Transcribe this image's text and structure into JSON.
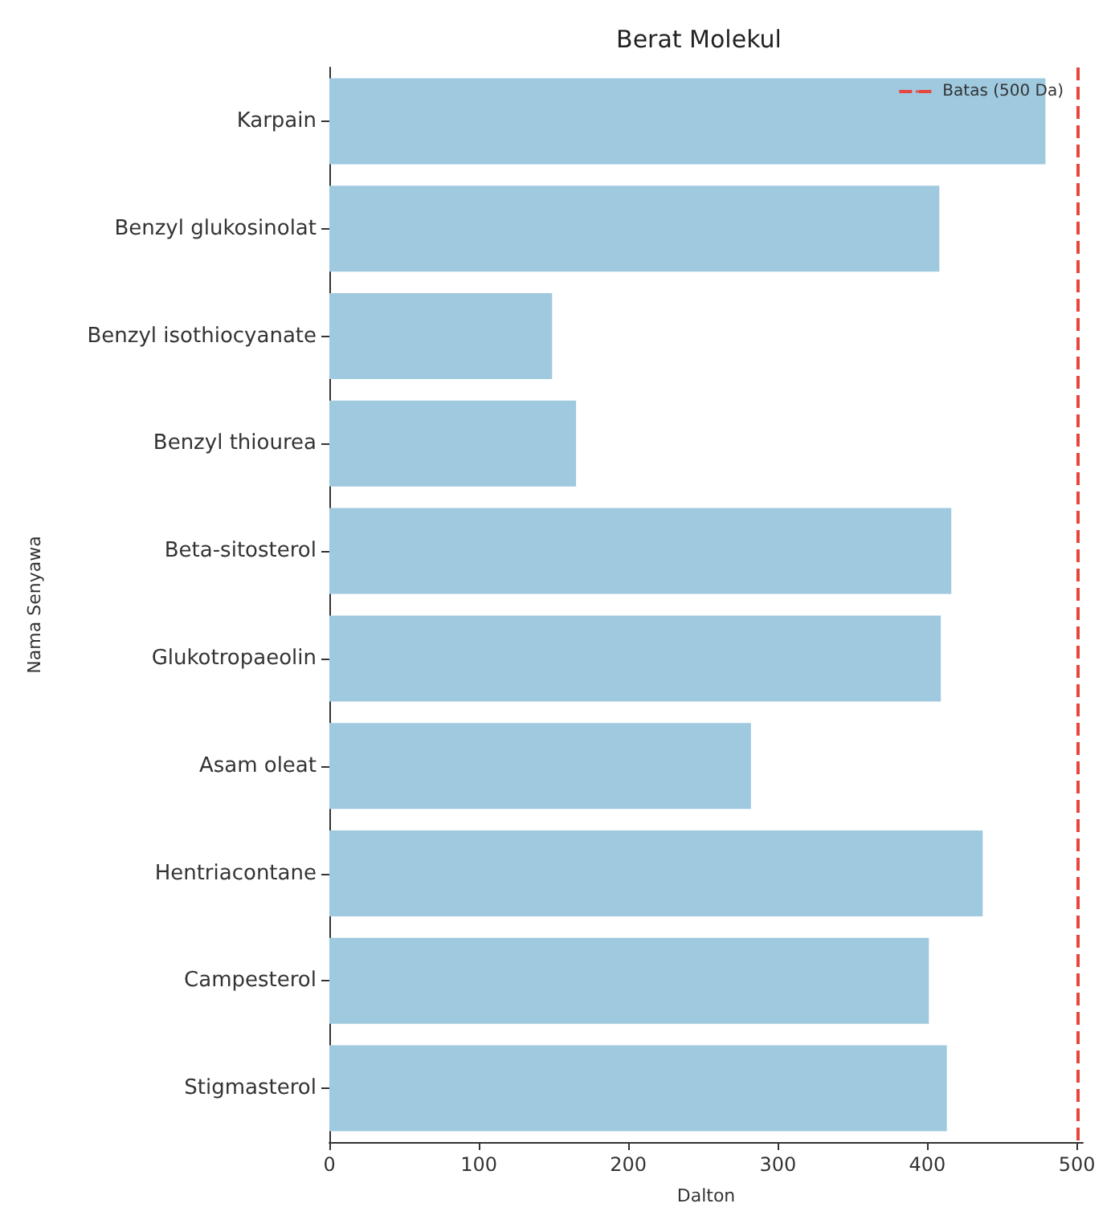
{
  "chart_data": {
    "type": "bar",
    "orientation": "horizontal",
    "title": "Berat Molekul",
    "xlabel": "Dalton",
    "ylabel": "Nama Senyawa",
    "categories": [
      "Karpain",
      "Benzyl glukosinolat",
      "Benzyl isothiocyanate",
      "Benzyl thiourea",
      "Beta-sitosterol",
      "Glukotropaeolin",
      "Asam oleat",
      "Hentriacontane",
      "Campesterol",
      "Stigmasterol"
    ],
    "values": [
      479,
      408,
      149,
      165,
      416,
      409,
      282,
      437,
      401,
      413
    ],
    "color": "#9ec9df",
    "xlim": [
      0,
      504
    ],
    "xticks": [
      0,
      100,
      200,
      300,
      400,
      500
    ],
    "ref_lines": [
      {
        "axis": "x",
        "value": 500,
        "label": "Batas (500 Da)",
        "color": "#e8453c",
        "line_style": "dashed"
      }
    ],
    "legend": "top right",
    "grid": false
  }
}
